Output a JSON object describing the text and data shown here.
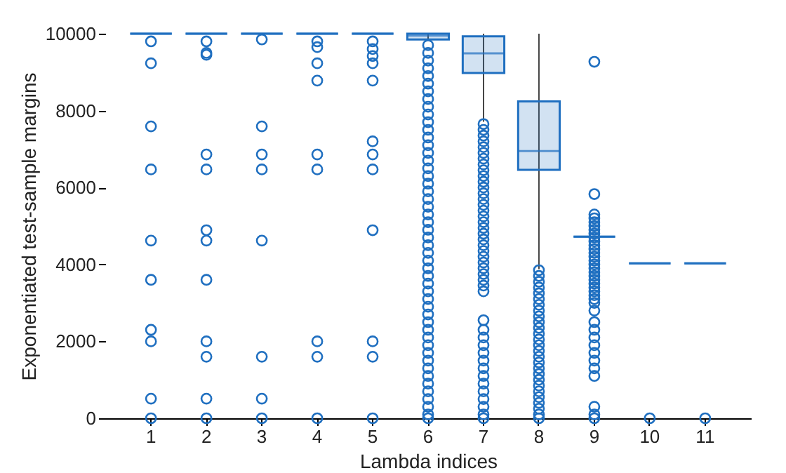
{
  "chart_data": {
    "type": "box",
    "xlabel": "Lambda indices",
    "ylabel": "Exponentiated test-sample margins",
    "categories": [
      "1",
      "2",
      "3",
      "4",
      "5",
      "6",
      "7",
      "8",
      "9",
      "10",
      "11"
    ],
    "ylim": [
      0,
      10000
    ],
    "yticks": [
      0,
      2000,
      4000,
      6000,
      8000,
      10000
    ],
    "grid": false,
    "marker": "circle",
    "series": [
      {
        "color": "#1f6fc0",
        "boxes": [
          {
            "low": 10000,
            "q1": 10000,
            "median": 10000,
            "q3": 10000,
            "high": 10000,
            "outliers": [
              9800,
              9230,
              7590,
              6470,
              4620,
              3600,
              2300,
              2000,
              510,
              0
            ]
          },
          {
            "low": 10000,
            "q1": 10000,
            "median": 10000,
            "q3": 10000,
            "high": 10000,
            "outliers": [
              9800,
              9500,
              9450,
              6860,
              6470,
              4890,
              4620,
              3600,
              2000,
              1600,
              510,
              0
            ]
          },
          {
            "low": 10000,
            "q1": 10000,
            "median": 10000,
            "q3": 10000,
            "high": 10000,
            "outliers": [
              9850,
              7590,
              6860,
              6470,
              4620,
              1600,
              510,
              0
            ]
          },
          {
            "low": 10000,
            "q1": 10000,
            "median": 10000,
            "q3": 10000,
            "high": 10000,
            "outliers": [
              9800,
              9650,
              9230,
              8780,
              6860,
              6470,
              2000,
              1600,
              0
            ]
          },
          {
            "low": 10000,
            "q1": 10000,
            "median": 10000,
            "q3": 10000,
            "high": 10000,
            "outliers": [
              9800,
              9600,
              9420,
              9230,
              8780,
              7200,
              6860,
              6470,
              4890,
              2000,
              1600,
              0
            ]
          },
          {
            "low": 9850,
            "q1": 9850,
            "median": 9950,
            "q3": 10000,
            "high": 10000,
            "outliers": [
              9700,
              9500,
              9300,
              9100,
              8900,
              8700,
              8500,
              8300,
              8100,
              7900,
              7700,
              7500,
              7300,
              7100,
              6900,
              6700,
              6500,
              6300,
              6100,
              5900,
              5700,
              5500,
              5300,
              5100,
              4900,
              4700,
              4500,
              4300,
              4100,
              3900,
              3700,
              3500,
              3300,
              3100,
              2900,
              2700,
              2500,
              2300,
              2100,
              1900,
              1700,
              1500,
              1300,
              1100,
              900,
              700,
              500,
              300,
              100,
              0
            ]
          },
          {
            "low": 7710,
            "q1": 8980,
            "median": 9490,
            "q3": 9930,
            "high": 10000,
            "outliers": [
              7650,
              7500,
              7350,
              7200,
              7050,
              6900,
              6750,
              6600,
              6450,
              6300,
              6150,
              6000,
              5850,
              5700,
              5550,
              5400,
              5250,
              5100,
              4950,
              4800,
              4650,
              4500,
              4350,
              4200,
              4050,
              3900,
              3750,
              3600,
              3450,
              3300,
              2550,
              2300,
              2100,
              1900,
              1700,
              1500,
              1300,
              1100,
              900,
              700,
              500,
              300,
              100,
              0
            ]
          },
          {
            "low": 3880,
            "q1": 6460,
            "median": 6950,
            "q3": 8240,
            "high": 10000,
            "outliers": [
              3850,
              3700,
              3550,
              3400,
              3250,
              3100,
              2950,
              2800,
              2650,
              2500,
              2350,
              2200,
              2050,
              1900,
              1750,
              1600,
              1450,
              1300,
              1150,
              1000,
              850,
              700,
              550,
              400,
              250,
              100,
              0
            ]
          },
          {
            "low": 4720,
            "q1": 4720,
            "median": 4720,
            "q3": 4720,
            "high": 4720,
            "outliers": [
              9270,
              5830,
              5300,
              5200,
              5100,
              5000,
              4900,
              4800,
              4700,
              4600,
              4500,
              4400,
              4300,
              4200,
              4100,
              4000,
              3900,
              3800,
              3700,
              3600,
              3500,
              3400,
              3300,
              3200,
              3100,
              3000,
              2800,
              2500,
              2300,
              2100,
              1900,
              1700,
              1500,
              1300,
              1100,
              300,
              100,
              0
            ]
          },
          {
            "low": 4030,
            "q1": 4030,
            "median": 4030,
            "q3": 4030,
            "high": 4030,
            "outliers": [
              0
            ]
          },
          {
            "low": 4030,
            "q1": 4030,
            "median": 4030,
            "q3": 4030,
            "high": 4030,
            "outliers": [
              0
            ]
          }
        ]
      }
    ]
  }
}
